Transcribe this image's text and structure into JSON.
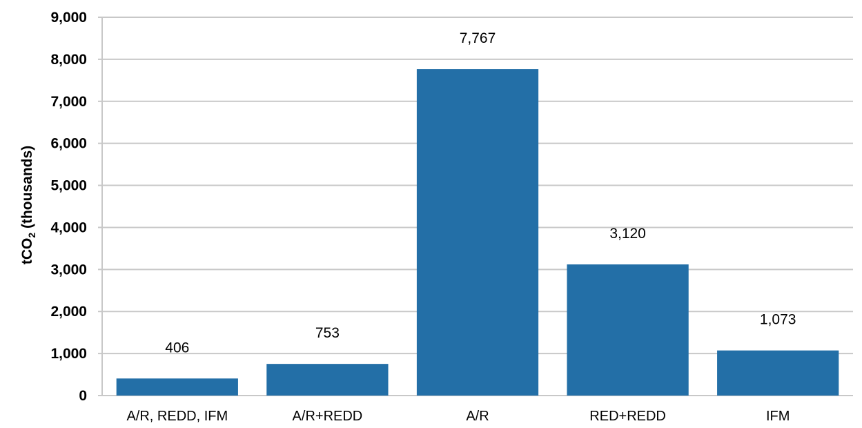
{
  "chart_data": {
    "type": "bar",
    "categories": [
      "A/R, REDD, IFM",
      "A/R+REDD",
      "A/R",
      "RED+REDD",
      "IFM"
    ],
    "values": [
      406,
      753,
      7767,
      3120,
      1073
    ],
    "data_labels": [
      "406",
      "753",
      "7,767",
      "3,120",
      "1,073"
    ],
    "ylabel_main": "tCO",
    "ylabel_sub": "2",
    "ylabel_rest": " (thousands)",
    "xlabel": "",
    "ylim": [
      0,
      9000
    ],
    "yticks": [
      0,
      1000,
      2000,
      3000,
      4000,
      5000,
      6000,
      7000,
      8000,
      9000
    ],
    "ytick_labels": [
      "0",
      "1,000",
      "2,000",
      "3,000",
      "4,000",
      "5,000",
      "6,000",
      "7,000",
      "8,000",
      "9,000"
    ],
    "grid": true,
    "bar_color": "#236fa7",
    "grid_color": "#c8c8c8"
  }
}
